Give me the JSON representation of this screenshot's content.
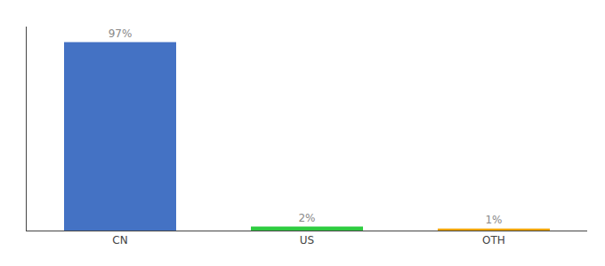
{
  "chart_data": {
    "type": "bar",
    "categories": [
      "CN",
      "US",
      "OTH"
    ],
    "values": [
      97,
      2,
      1
    ],
    "value_labels": [
      "97%",
      "2%",
      "1%"
    ],
    "data_labels": true,
    "colors": [
      "#4472C4",
      "#2ECC40",
      "#F0A500"
    ],
    "ylim": [
      0,
      105
    ],
    "tick_labels": "x",
    "grid": false
  }
}
